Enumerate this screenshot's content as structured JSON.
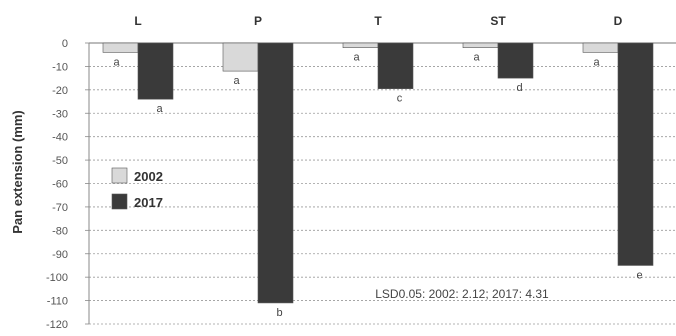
{
  "chart_data": {
    "type": "bar",
    "categories": [
      "L",
      "P",
      "T",
      "ST",
      "D"
    ],
    "series": [
      {
        "name": "2002",
        "values": [
          -4,
          -12,
          -2,
          -2,
          -4
        ],
        "letters": [
          "a",
          "a",
          "a",
          "a",
          "a"
        ],
        "color": "#d9d9d9"
      },
      {
        "name": "2017",
        "values": [
          -24,
          -111,
          -19.5,
          -15,
          -95
        ],
        "letters": [
          "a",
          "b",
          "c",
          "d",
          "e"
        ],
        "color": "#3a3a3a"
      }
    ],
    "ylabel": "Pan extension (mm)",
    "ylim": [
      -120,
      0
    ],
    "yticks": [
      0,
      -10,
      -20,
      -30,
      -40,
      -50,
      -60,
      -70,
      -80,
      -90,
      -100,
      -110,
      -120
    ],
    "grid": true,
    "legend_position": "left",
    "annotation": "LSD0.05: 2002: 2.12; 2017: 4.31"
  }
}
